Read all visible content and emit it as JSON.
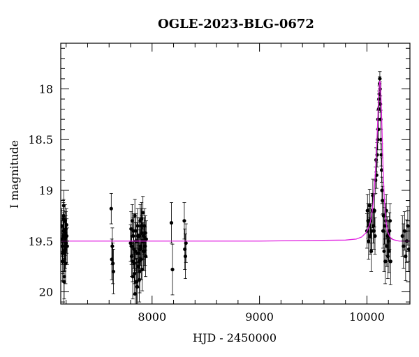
{
  "chart_data": {
    "type": "scatter",
    "title": "OGLE-2023-BLG-0672",
    "xlabel": "HJD - 2450000",
    "ylabel": "I magnitude",
    "xlim": [
      7150,
      10400
    ],
    "ylim": [
      20.12,
      17.55
    ],
    "y_axis_inverted": true,
    "x_ticks": [
      8000,
      9000,
      10000
    ],
    "x_tick_labels": [
      "8000",
      "9000",
      "10000"
    ],
    "y_ticks": [
      18,
      18.5,
      19,
      19.5,
      20
    ],
    "y_tick_labels": [
      "18",
      "18.5",
      "19",
      "19.5",
      "20"
    ],
    "grid": false,
    "colors": {
      "points": "#000000",
      "model": "#e020e0",
      "frame": "#000000"
    },
    "model": {
      "name": "",
      "baseline_mag": 19.5,
      "x": [
        7150,
        9000,
        9800,
        9900,
        9950,
        9990,
        10010,
        10030,
        10050,
        10060,
        10070,
        10080,
        10090,
        10100,
        10105,
        10110,
        10115,
        10118,
        10121,
        10124,
        10127,
        10130,
        10135,
        10140,
        10145,
        10150,
        10160,
        10170,
        10180,
        10190,
        10210,
        10230,
        10260,
        10300,
        10400
      ],
      "y": [
        19.5,
        19.5,
        19.49,
        19.48,
        19.46,
        19.42,
        19.38,
        19.32,
        19.2,
        19.1,
        18.97,
        18.8,
        18.58,
        18.32,
        18.18,
        18.06,
        17.97,
        17.93,
        17.92,
        17.94,
        17.99,
        18.06,
        18.22,
        18.4,
        18.6,
        18.78,
        19.05,
        19.22,
        19.33,
        19.4,
        19.45,
        19.48,
        19.49,
        19.5,
        19.5
      ]
    },
    "series": [
      {
        "x": [
          7160,
          7165,
          7170,
          7172,
          7175,
          7178,
          7180,
          7182,
          7185,
          7188,
          7190,
          7193,
          7195,
          7198,
          7200,
          7205,
          7210,
          7162,
          7168,
          7176,
          7186,
          7196,
          7203,
          7180,
          7192
        ],
        "y": [
          19.35,
          19.55,
          19.62,
          19.45,
          19.28,
          19.15,
          19.4,
          19.85,
          19.6,
          19.5,
          19.3,
          19.47,
          19.72,
          19.38,
          19.52,
          19.45,
          19.55,
          19.48,
          19.7,
          19.25,
          19.6,
          19.42,
          19.34,
          19.9,
          19.58
        ],
        "err": [
          0.17,
          0.18,
          0.2,
          0.17,
          0.16,
          0.15,
          0.18,
          0.22,
          0.2,
          0.18,
          0.16,
          0.17,
          0.2,
          0.17,
          0.19,
          0.17,
          0.18,
          0.17,
          0.19,
          0.16,
          0.19,
          0.17,
          0.16,
          0.23,
          0.19
        ]
      },
      {
        "x": [
          7620,
          7625,
          7630,
          7635,
          7640
        ],
        "y": [
          19.18,
          19.68,
          19.55,
          19.72,
          19.8
        ],
        "err": [
          0.15,
          0.2,
          0.18,
          0.2,
          0.22
        ]
      },
      {
        "x": [
          7800,
          7805,
          7810,
          7815,
          7820,
          7825,
          7830,
          7835,
          7840,
          7845,
          7850,
          7855,
          7860,
          7865,
          7870,
          7875,
          7880,
          7885,
          7890,
          7895,
          7900,
          7905,
          7910,
          7915,
          7920,
          7925,
          7930,
          7935,
          7940,
          7945,
          7808,
          7818,
          7828,
          7838,
          7848,
          7858,
          7868,
          7878,
          7888,
          7898,
          7908,
          7918,
          7928,
          7938,
          7842,
          7862,
          7882,
          7902
        ],
        "y": [
          19.52,
          19.38,
          19.65,
          19.3,
          19.85,
          19.45,
          19.58,
          19.72,
          19.25,
          19.6,
          19.4,
          19.9,
          19.5,
          19.35,
          19.75,
          19.62,
          19.45,
          19.8,
          19.3,
          19.55,
          19.68,
          19.42,
          19.5,
          19.22,
          19.6,
          19.45,
          19.35,
          19.55,
          19.65,
          19.48,
          19.55,
          19.7,
          19.4,
          19.82,
          19.5,
          19.62,
          19.45,
          19.7,
          19.58,
          19.35,
          19.78,
          19.5,
          19.6,
          19.42,
          20.02,
          19.95,
          19.88,
          19.28
        ],
        "err": [
          0.18,
          0.17,
          0.2,
          0.16,
          0.22,
          0.18,
          0.19,
          0.2,
          0.16,
          0.19,
          0.17,
          0.23,
          0.18,
          0.17,
          0.21,
          0.19,
          0.18,
          0.21,
          0.16,
          0.19,
          0.2,
          0.17,
          0.18,
          0.16,
          0.19,
          0.18,
          0.17,
          0.19,
          0.2,
          0.18,
          0.18,
          0.2,
          0.17,
          0.21,
          0.18,
          0.19,
          0.18,
          0.2,
          0.19,
          0.17,
          0.21,
          0.18,
          0.19,
          0.17,
          0.25,
          0.24,
          0.22,
          0.16
        ]
      },
      {
        "x": [
          8180,
          8190
        ],
        "y": [
          19.32,
          19.78
        ],
        "err": [
          0.2,
          0.25
        ]
      },
      {
        "x": [
          8300,
          8305,
          8310,
          8315
        ],
        "y": [
          19.3,
          19.58,
          19.65,
          19.52
        ],
        "err": [
          0.18,
          0.2,
          0.22,
          0.19
        ]
      },
      {
        "x": [
          10000,
          10005,
          10010,
          10015,
          10020,
          10025,
          10030,
          10035,
          10040,
          10045,
          10050,
          10055,
          10060,
          10065,
          10070,
          10075,
          10080,
          10085,
          10090,
          10095,
          10100,
          10103,
          10106,
          10109,
          10112,
          10115,
          10118,
          10120,
          10122,
          10125,
          10128,
          10131,
          10134,
          10137,
          10140,
          10145,
          10150,
          10155,
          10160,
          10165,
          10170,
          10175,
          10180,
          10185,
          10190,
          10195,
          10200,
          10205,
          10210,
          10215,
          10220
        ],
        "y": [
          19.4,
          19.2,
          19.3,
          19.5,
          19.35,
          19.15,
          19.45,
          19.3,
          19.6,
          19.4,
          19.2,
          19.05,
          19.35,
          19.4,
          19.2,
          19.45,
          18.9,
          18.7,
          18.85,
          18.65,
          18.5,
          18.3,
          18.4,
          18.2,
          18.1,
          18.05,
          17.95,
          17.9,
          18.0,
          18.15,
          18.3,
          18.5,
          18.65,
          18.8,
          19.0,
          19.1,
          19.4,
          19.25,
          19.6,
          19.35,
          19.7,
          19.3,
          19.2,
          19.55,
          19.45,
          19.65,
          19.5,
          19.6,
          19.4,
          19.3,
          19.7
        ],
        "err": [
          0.17,
          0.16,
          0.17,
          0.18,
          0.17,
          0.16,
          0.18,
          0.17,
          0.2,
          0.18,
          0.17,
          0.16,
          0.17,
          0.18,
          0.16,
          0.18,
          0.13,
          0.12,
          0.13,
          0.12,
          0.1,
          0.09,
          0.1,
          0.09,
          0.08,
          0.08,
          0.07,
          0.07,
          0.07,
          0.08,
          0.09,
          0.1,
          0.11,
          0.12,
          0.13,
          0.14,
          0.17,
          0.16,
          0.2,
          0.18,
          0.22,
          0.17,
          0.16,
          0.2,
          0.19,
          0.22,
          0.2,
          0.21,
          0.18,
          0.17,
          0.23
        ]
      },
      {
        "x": [
          10330,
          10340,
          10350,
          10360,
          10370,
          10380,
          10390
        ],
        "y": [
          19.45,
          19.55,
          19.4,
          19.65,
          19.5,
          19.35,
          19.58
        ],
        "err": [
          0.2,
          0.22,
          0.19,
          0.24,
          0.21,
          0.19,
          0.22
        ]
      }
    ]
  }
}
